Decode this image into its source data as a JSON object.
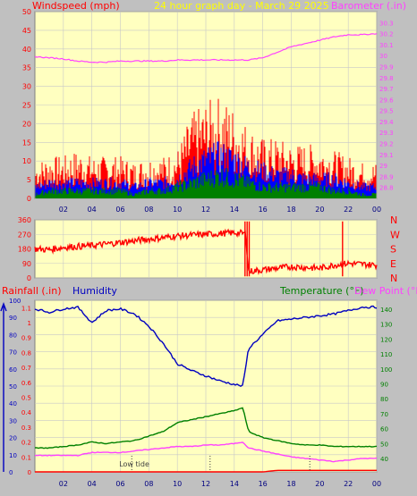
{
  "header": {
    "top_left": "Windspeed (mph)",
    "title": "24 hour graph day - March 29 2025",
    "top_right": "Barometer (.in)",
    "bottom_left_1": "Rainfall (.in)",
    "bottom_left_2": "Humidity",
    "bottom_right_1": "Temperature (°F)",
    "bottom_right_2": "Dew Point (°F)",
    "tide_label": "Low tide"
  },
  "colors": {
    "background": "#c0c0c0",
    "plot_bg": "#ffffc0",
    "grid": "#c8c8c8",
    "wind_gust": "#ff0000",
    "wind_avg": "#0000ff",
    "wind_low": "#008000",
    "barometer": "#ff40ff",
    "direction": "#ff0000",
    "humidity": "#0000c0",
    "temperature": "#008000",
    "dewpoint": "#ff40ff",
    "rainfall": "#ff0000",
    "title": "#ffff00"
  },
  "x_ticks": [
    "02",
    "04",
    "06",
    "08",
    "10",
    "12",
    "14",
    "16",
    "18",
    "20",
    "22",
    "00"
  ],
  "chart_data": [
    {
      "type": "line",
      "panel": "wind-baro",
      "x": [
        0,
        1,
        2,
        3,
        4,
        5,
        6,
        7,
        8,
        9,
        10,
        11,
        12,
        13,
        14,
        15,
        16,
        17,
        18,
        19,
        20,
        21,
        22,
        23,
        24
      ],
      "series": [
        {
          "name": "Windspeed (mph)",
          "axis": "left",
          "values": [
            6,
            7,
            7,
            8,
            7,
            7,
            7,
            6,
            7,
            7,
            8,
            14,
            16,
            17,
            15,
            12,
            10,
            10,
            9,
            9,
            9,
            8,
            7,
            6,
            6
          ]
        },
        {
          "name": "Barometer (.in)",
          "axis": "right",
          "values": [
            29.99,
            29.98,
            29.97,
            29.95,
            29.94,
            29.94,
            29.95,
            29.95,
            29.95,
            29.95,
            29.96,
            29.96,
            29.96,
            29.96,
            29.96,
            29.96,
            29.98,
            30.03,
            30.08,
            30.11,
            30.14,
            30.17,
            30.19,
            30.19,
            30.2
          ]
        }
      ],
      "wind_avg": [
        3,
        4,
        4,
        4,
        4,
        4,
        4,
        3,
        4,
        4,
        5,
        8,
        10,
        11,
        10,
        8,
        7,
        6,
        6,
        5,
        5,
        5,
        4,
        3,
        3
      ],
      "wind_low": [
        1,
        2,
        2,
        2,
        2,
        2,
        2,
        1,
        2,
        2,
        3,
        4,
        5,
        6,
        5,
        4,
        3,
        3,
        3,
        3,
        3,
        2,
        2,
        1,
        1
      ],
      "ylim_left": [
        0,
        50
      ],
      "yticks_left": [
        "0",
        "5",
        "10",
        "15",
        "20",
        "25",
        "30",
        "35",
        "40",
        "45",
        "50"
      ],
      "ylim_right": [
        28.7,
        30.4
      ],
      "yticks_right": [
        "28.8",
        "28.9",
        "29",
        "29.1",
        "29.2",
        "29.3",
        "29.4",
        "29.5",
        "29.6",
        "29.7",
        "29.8",
        "29.9",
        "30",
        "30.1",
        "30.2",
        "30.3"
      ]
    },
    {
      "type": "line",
      "panel": "wind-direction",
      "x": [
        0,
        1,
        2,
        3,
        4,
        5,
        6,
        7,
        8,
        9,
        10,
        11,
        12,
        13,
        14,
        14.8,
        15,
        16,
        17,
        18,
        19,
        20,
        21,
        22,
        23,
        24
      ],
      "series": [
        {
          "name": "Wind direction (deg)",
          "values": [
            180,
            175,
            190,
            195,
            200,
            210,
            220,
            230,
            240,
            250,
            260,
            265,
            270,
            275,
            280,
            275,
            40,
            50,
            60,
            70,
            65,
            60,
            80,
            90,
            85,
            80
          ]
        }
      ],
      "ylim": [
        0,
        360
      ],
      "yticks": [
        "0",
        "90",
        "180",
        "270",
        "360"
      ],
      "compass": [
        "N",
        "W",
        "S",
        "E",
        "N"
      ]
    },
    {
      "type": "line",
      "panel": "humidity-temp",
      "x": [
        0,
        1,
        2,
        3,
        4,
        5,
        6,
        7,
        8,
        9,
        10,
        11,
        12,
        13,
        14,
        14.6,
        15,
        16,
        17,
        18,
        19,
        20,
        21,
        22,
        23,
        24
      ],
      "series": [
        {
          "name": "Humidity",
          "axis": "left",
          "values": [
            95,
            93,
            95,
            96,
            87,
            94,
            95,
            92,
            85,
            75,
            63,
            59,
            56,
            53,
            51,
            50,
            72,
            80,
            88,
            89,
            90,
            91,
            92,
            94,
            96,
            96
          ]
        },
        {
          "name": "Temperature (°F)",
          "axis": "right",
          "values": [
            47,
            47,
            48,
            49,
            51,
            50,
            51,
            52,
            55,
            58,
            64,
            66,
            68,
            70,
            72,
            74,
            58,
            54,
            52,
            50,
            49,
            49,
            48,
            48,
            48,
            48
          ]
        },
        {
          "name": "Dew Point (°F)",
          "axis": "right",
          "values": [
            42,
            42,
            42,
            42,
            44,
            44,
            44,
            45,
            46,
            47,
            48,
            48,
            49,
            49,
            50,
            51,
            47,
            45,
            43,
            41,
            40,
            39,
            38,
            39,
            40,
            40
          ]
        },
        {
          "name": "Rainfall (.in)",
          "axis": "rain",
          "values": [
            0,
            0,
            0,
            0,
            0,
            0,
            0,
            0,
            0,
            0,
            0,
            0,
            0,
            0,
            0,
            0,
            0,
            0,
            0.01,
            0.01,
            0.01,
            0.01,
            0.01,
            0.01,
            0.01,
            0.01
          ]
        }
      ],
      "ylim_humidity": [
        0,
        100
      ],
      "yticks_humidity": [
        "0",
        "10",
        "20",
        "30",
        "40",
        "50",
        "60",
        "70",
        "80",
        "90",
        "100"
      ],
      "ylim_rain": [
        0,
        1.15
      ],
      "yticks_rain": [
        "0",
        "0.1",
        "0.2",
        "0.3",
        "0.4",
        "0.5",
        "0.6",
        "0.7",
        "0.8",
        "0.9",
        "1",
        "1.1"
      ],
      "ylim_temp": [
        31,
        146
      ],
      "yticks_temp": [
        "40",
        "50",
        "60",
        "70",
        "80",
        "90",
        "100",
        "110",
        "120",
        "130",
        "140"
      ],
      "tide_markers": [
        6.8,
        12.3,
        19.3
      ]
    }
  ]
}
